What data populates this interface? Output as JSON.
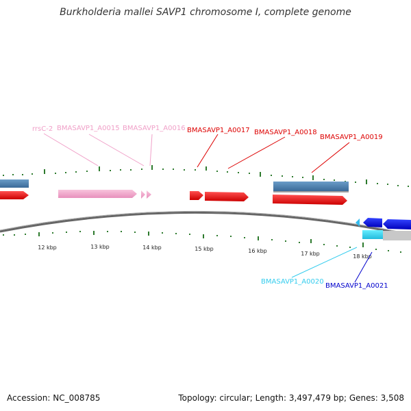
{
  "title": "Burkholderia mallei SAVP1 chromosome I, complete genome",
  "footer": {
    "accession": "Accession: NC_008785",
    "stats": "Topology: circular; Length: 3,497,479 bp; Genes: 3,508"
  },
  "ruler": [
    "12 kbp",
    "13 kbp",
    "14 kbp",
    "15 kbp",
    "16 kbp",
    "17 kbp",
    "18 kbp"
  ],
  "features": [
    {
      "id": "rrsC-2",
      "label": "rrsC-2",
      "color": "#f0a0c8"
    },
    {
      "id": "A0015",
      "label": "BMASAVP1_A0015",
      "color": "#f0a0c8"
    },
    {
      "id": "A0016",
      "label": "BMASAVP1_A0016",
      "color": "#f0a0c8"
    },
    {
      "id": "A0017",
      "label": "BMASAVP1_A0017",
      "color": "#dd0000"
    },
    {
      "id": "A0018",
      "label": "BMASAVP1_A0018",
      "color": "#dd0000"
    },
    {
      "id": "A0019",
      "label": "BMASAVP1_A0019",
      "color": "#dd0000"
    },
    {
      "id": "A0020",
      "label": "BMASAVP1_A0020",
      "color": "#33ccee"
    },
    {
      "id": "A0021",
      "label": "BMASAVP1_A0021",
      "color": "#0000cc"
    }
  ],
  "colors": {
    "cds": "#ee1111",
    "rna": "#f4a6cc",
    "gene": "#4a7fb0",
    "tick": "#2d7a2d",
    "backbone": "#777777",
    "cyan": "#33ddee",
    "blue": "#1122dd",
    "grey": "#c8c8c8"
  }
}
